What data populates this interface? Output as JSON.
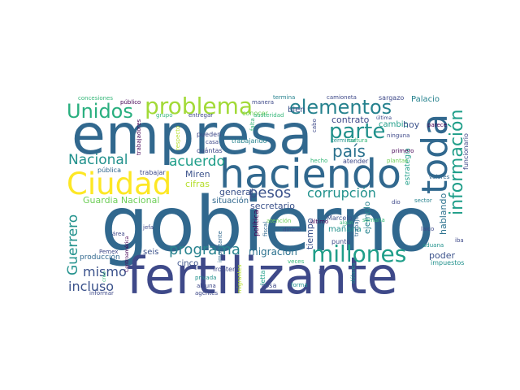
{
  "palette": {
    "dark_purple": "#440154",
    "indigo": "#3b528b",
    "steel": "#31688e",
    "teal": "#21918c",
    "green_teal": "#1f9e89",
    "green": "#35b779",
    "lime": "#6ece58",
    "yellow_green": "#b5de2b",
    "yellow": "#fde725"
  },
  "words": {
    "gobierno": "gobierno",
    "empresa": "empresa",
    "fertilizante": "fertilizante",
    "haciendo": "haciendo",
    "toda": "toda",
    "ciudad": "Ciudad",
    "problema": "problema",
    "elementos": "elementos",
    "unidos": "Unidos",
    "informacion": "información",
    "parte": "parte",
    "pais": "país",
    "millones": "millones",
    "programa": "programa",
    "corrupcion": "corrupción",
    "pesos": "pesos",
    "nacional": "Nacional",
    "acuerdo": "acuerdo",
    "guerrero": "Guerrero",
    "mismo": "mismo",
    "incluso": "incluso",
    "migracion": "migración",
    "guardia_nacional": "Guardia Nacional",
    "miren": "Miren",
    "cifras": "cifras",
    "general": "general",
    "situacion": "situación",
    "secretario": "secretario",
    "contrato": "contrato",
    "cambio": "cambio",
    "hoy": "hoy",
    "bien": "bien",
    "palacio": "Palacio",
    "poder": "poder",
    "impuestos": "impuestos",
    "cinco": "cinco",
    "seis": "seis",
    "produccion": "producción",
    "tiempo": "tiempo",
    "manana": "mañana",
    "marcelo": "Marcelo",
    "hablando": "hablando",
    "ejemplo": "ejemplo",
    "estrategia": "estrategia",
    "funcionario": "funcionario",
    "trabajando": "trabajando",
    "pueden": "pueden",
    "cuantas": "cuántas",
    "casa": "casa",
    "trabajar": "trabajar",
    "publica": "pública",
    "concesiones": "concesiones",
    "publico": "público",
    "grupo": "grupo",
    "entregar": "entregar",
    "conocer": "conocer",
    "austeridad": "austeridad",
    "manera": "manera",
    "termina": "termina",
    "camioneta": "camioneta",
    "sargazo": "sargazo",
    "ultima": "última",
    "ninguna": "ninguna",
    "parece": "parece",
    "primero": "primero",
    "terminar": "terminar",
    "cultura": "cultura",
    "plantas": "plantas",
    "valores": "valores",
    "atender": "atender",
    "hecho": "hecho",
    "sector": "sector",
    "dio": "dio",
    "laico": "laico",
    "aduana": "aduana",
    "iba": "iba",
    "punto": "punto",
    "trabajo": "trabajo",
    "dinero": "dinero",
    "politica": "política",
    "fiscal": "fiscal",
    "jetta": "Jetta",
    "importante": "importante",
    "frontera": "frontera",
    "privada": "privada",
    "alguna": "alguna",
    "agentes": "agentes",
    "informar": "informar",
    "pemex": "Pemex",
    "area": "área",
    "jefa": "jefa",
    "cosa": "cosa",
    "forma": "forma",
    "veces": "veces",
    "ir": "ir",
    "atencion": "atención",
    "ultimo": "último",
    "semana": "semana",
    "algun": "algún",
    "dolares": "dólares",
    "migrantes": "migrantes",
    "centroamerica": "Centroamérica",
    "creo": "creo",
    "trabajadores": "trabajadores",
    "respecto": "respecto",
    "falta": "falta",
    "cabo": "cabo"
  }
}
